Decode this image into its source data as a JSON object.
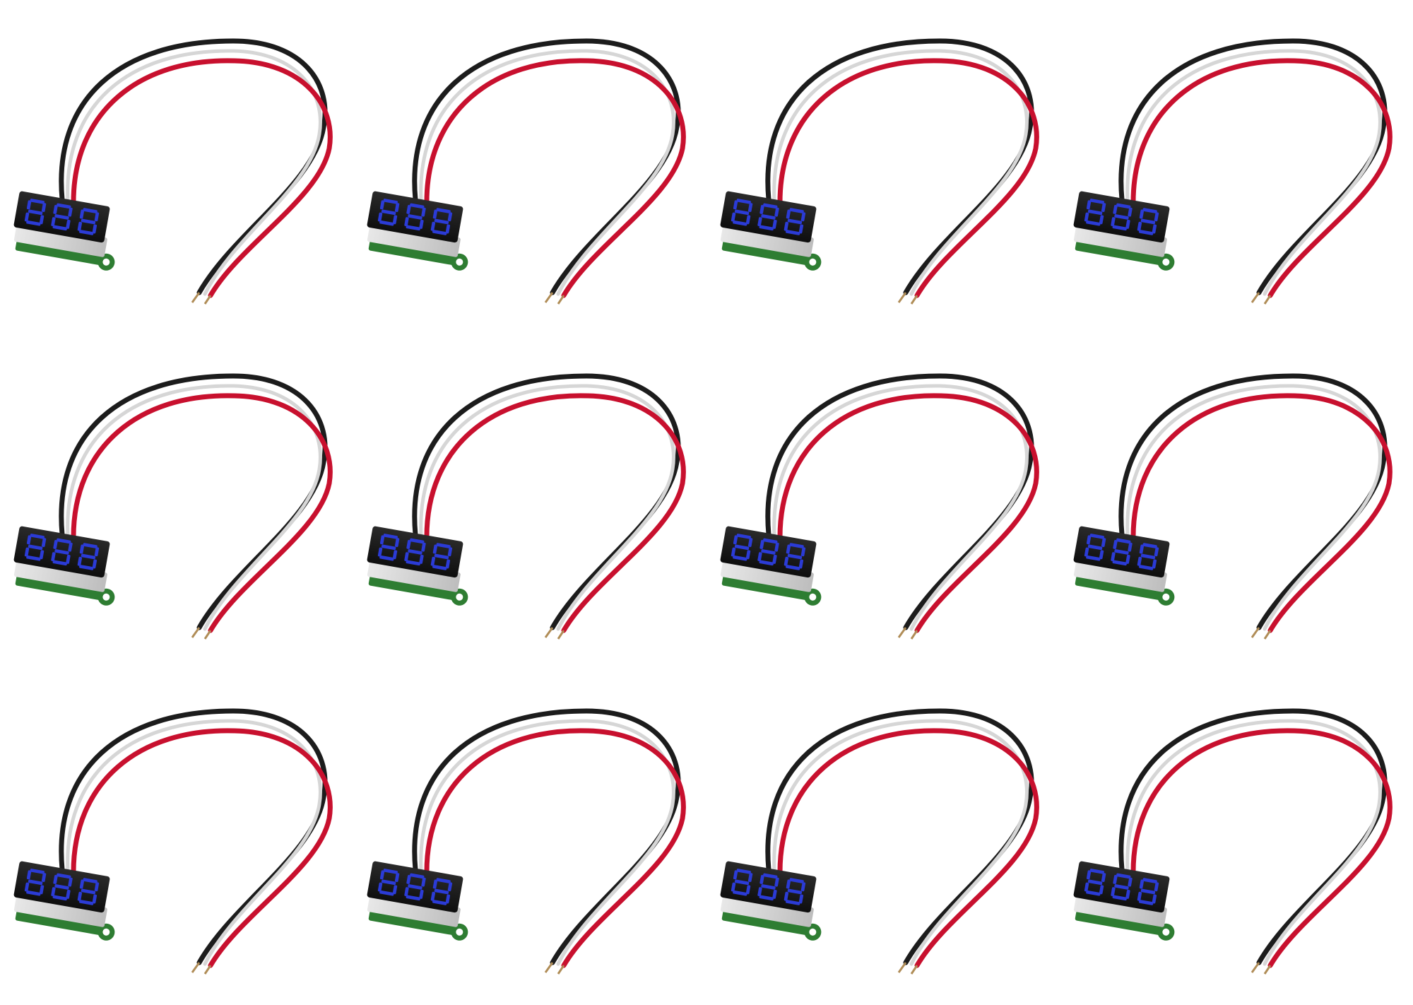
{
  "image": {
    "subject": "voltmeter-module",
    "rows": 3,
    "columns": 4,
    "count": 12
  },
  "module": {
    "display_digits": 3,
    "display_color": "#2b3bd6",
    "display_glow": "#5b6cff",
    "housing_color": "#1a1a1a",
    "pcb_color": "#2e7d32",
    "wire_colors": [
      "#1c1c1c",
      "#c8102e",
      "#f2f2f2"
    ]
  }
}
